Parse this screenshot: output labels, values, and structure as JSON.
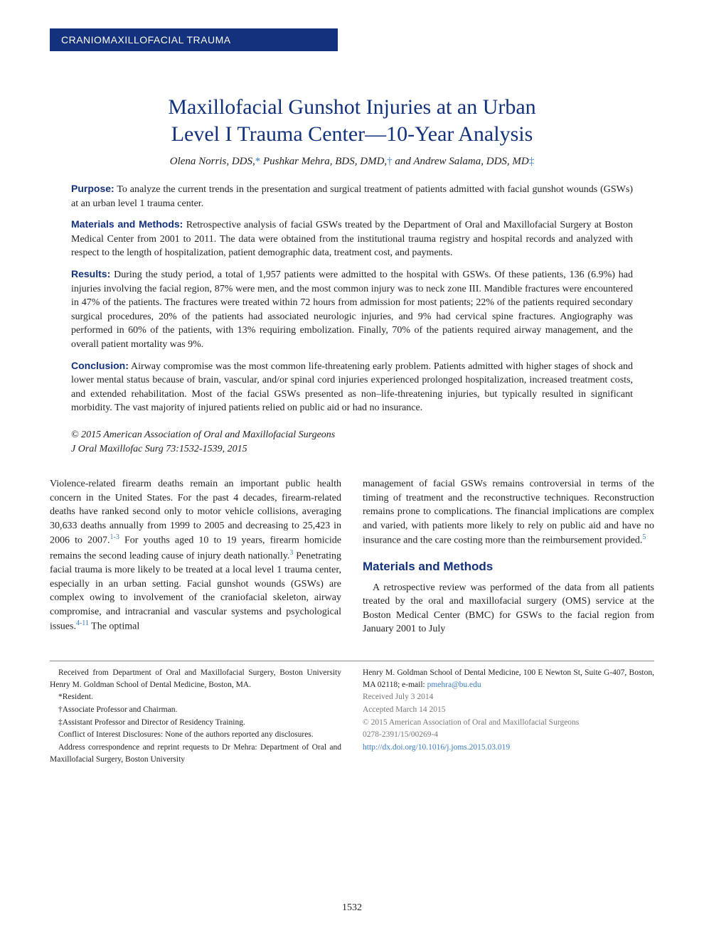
{
  "banner": "CRANIOMAXILLOFACIAL TRAUMA",
  "title_line1": "Maxillofacial Gunshot Injuries at an Urban",
  "title_line2": "Level I Trauma Center—10-Year Analysis",
  "authors": {
    "a1_name": "Olena Norris, DDS,",
    "a1_sym": "*",
    "a2_name": " Pushkar Mehra, BDS, DMD,",
    "a2_sym": "†",
    "a3_prefix": " and ",
    "a3_name": "Andrew Salama, DDS, MD",
    "a3_sym": "‡"
  },
  "abstract": {
    "purpose_label": "Purpose:",
    "purpose_text": " To analyze the current trends in the presentation and surgical treatment of patients admitted with facial gunshot wounds (GSWs) at an urban level 1 trauma center.",
    "methods_label": "Materials and Methods:",
    "methods_text": " Retrospective analysis of facial GSWs treated by the Department of Oral and Maxillofacial Surgery at Boston Medical Center from 2001 to 2011. The data were obtained from the institutional trauma registry and hospital records and analyzed with respect to the length of hospitalization, patient demographic data, treatment cost, and payments.",
    "results_label": "Results:",
    "results_text": " During the study period, a total of 1,957 patients were admitted to the hospital with GSWs. Of these patients, 136 (6.9%) had injuries involving the facial region, 87% were men, and the most common injury was to neck zone III. Mandible fractures were encountered in 47% of the patients. The fractures were treated within 72 hours from admission for most patients; 22% of the patients required secondary surgical procedures, 20% of the patients had associated neurologic injuries, and 9% had cervical spine fractures. Angiography was performed in 60% of the patients, with 13% requiring embolization. Finally, 70% of the patients required airway management, and the overall patient mortality was 9%.",
    "conclusion_label": "Conclusion:",
    "conclusion_text": " Airway compromise was the most common life-threatening early problem. Patients admitted with higher stages of shock and lower mental status because of brain, vascular, and/or spinal cord injuries experienced prolonged hospitalization, increased treatment costs, and extended rehabilitation. Most of the facial GSWs presented as non–life-threatening injuries, but typically resulted in significant morbidity. The vast majority of injured patients relied on public aid or had no insurance."
  },
  "copyright_line1": "© 2015 American Association of Oral and Maxillofacial Surgeons",
  "copyright_line2": "J Oral Maxillofac Surg 73:1532-1539, 2015",
  "body": {
    "col1_p1a": "Violence-related firearm deaths remain an important public health concern in the United States. For the past 4 decades, firearm-related deaths have ranked second only to motor vehicle collisions, averaging 30,633 deaths annually from 1999 to 2005 and decreasing to 25,423 in 2006 to 2007.",
    "col1_sup1": "1-3",
    "col1_p1b": " For youths aged 10 to 19 years, firearm homicide remains the second leading cause of injury death nationally.",
    "col1_sup2": "3",
    "col1_p1c": " Penetrating facial trauma is more likely to be treated at a local level 1 trauma center, especially in an urban setting. Facial gunshot wounds (GSWs) are complex owing to involvement of the craniofacial skeleton, airway compromise, and intracranial and vascular systems and psychological issues.",
    "col1_sup3": "4-11",
    "col1_p1d": " The optimal",
    "col2_p1a": "management of facial GSWs remains controversial in terms of the timing of treatment and the reconstructive techniques. Reconstruction remains prone to complications. The financial implications are complex and varied, with patients more likely to rely on public aid and have no insurance and the care costing more than the reimbursement provided.",
    "col2_sup1": "5",
    "col2_heading": "Materials and Methods",
    "col2_p2": "A retrospective review was performed of the data from all patients treated by the oral and maxillofacial surgery (OMS) service at the Boston Medical Center (BMC) for GSWs to the facial region from January 2001 to July"
  },
  "footer": {
    "left": {
      "l1": "Received from Department of Oral and Maxillofacial Surgery, Boston University Henry M. Goldman School of Dental Medicine, Boston, MA.",
      "l2": "*Resident.",
      "l3": "†Associate Professor and Chairman.",
      "l4": "‡Assistant Professor and Director of Residency Training.",
      "l5": "Conflict of Interest Disclosures: None of the authors reported any disclosures.",
      "l6": "Address correspondence and reprint requests to Dr Mehra: Department of Oral and Maxillofacial Surgery, Boston University"
    },
    "right": {
      "r1a": "Henry M. Goldman School of Dental Medicine, 100 E Newton St, Suite G-407, Boston, MA 02118; e-mail: ",
      "r1_email": "pmehra@bu.edu",
      "r2": "Received July 3 2014",
      "r3": "Accepted March 14 2015",
      "r4": "© 2015 American Association of Oral and Maxillofacial Surgeons",
      "r5": "0278-2391/15/00269-4",
      "r6": "http://dx.doi.org/10.1016/j.joms.2015.03.019"
    }
  },
  "page_number": "1532",
  "colors": {
    "banner_bg": "#13317c",
    "banner_text": "#ffffff",
    "heading": "#13317c",
    "link": "#3b7bc4",
    "body_text": "#222222",
    "gray_text": "#777777"
  }
}
